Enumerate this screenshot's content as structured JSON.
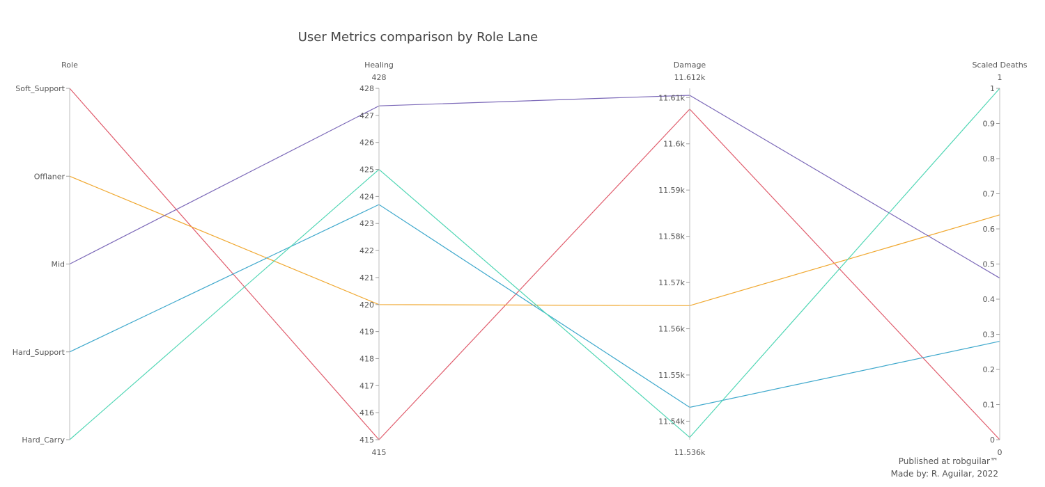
{
  "chart_data": {
    "type": "parallel_coordinates",
    "title": "User Metrics comparison by Role Lane",
    "dimensions": [
      {
        "key": "role",
        "label": "Role",
        "kind": "categorical",
        "categories": [
          "Soft_Support",
          "Offlaner",
          "Mid",
          "Hard_Support",
          "Hard_Carry"
        ]
      },
      {
        "key": "healing",
        "label": "Healing",
        "kind": "numeric",
        "range": [
          415,
          428
        ],
        "range_labels": [
          "415",
          "428"
        ],
        "ticks": [
          415,
          416,
          417,
          418,
          419,
          420,
          421,
          422,
          423,
          424,
          425,
          426,
          427,
          428
        ],
        "tick_labels": [
          "415",
          "416",
          "417",
          "418",
          "419",
          "420",
          "421",
          "422",
          "423",
          "424",
          "425",
          "426",
          "427",
          "428"
        ]
      },
      {
        "key": "damage",
        "label": "Damage",
        "kind": "numeric",
        "range": [
          11.536,
          11.612
        ],
        "range_labels": [
          "11.536k",
          "11.612k"
        ],
        "ticks": [
          11.54,
          11.55,
          11.56,
          11.57,
          11.58,
          11.59,
          11.6,
          11.61
        ],
        "tick_labels": [
          "11.54k",
          "11.55k",
          "11.56k",
          "11.57k",
          "11.58k",
          "11.59k",
          "11.6k",
          "11.61k"
        ]
      },
      {
        "key": "deaths",
        "label": "Scaled Deaths",
        "kind": "numeric",
        "range": [
          0,
          1
        ],
        "range_labels": [
          "0",
          "1"
        ],
        "ticks": [
          0,
          0.1,
          0.2,
          0.3,
          0.4,
          0.5,
          0.6,
          0.7,
          0.8,
          0.9,
          1
        ],
        "tick_labels": [
          "0",
          "0.1",
          "0.2",
          "0.3",
          "0.4",
          "0.5",
          "0.6",
          "0.7",
          "0.8",
          "0.9",
          "1"
        ]
      }
    ],
    "records": [
      {
        "role": "Soft_Support",
        "healing": 415.0,
        "damage": 11.6075,
        "deaths": 0.0,
        "color": "#e05c6c"
      },
      {
        "role": "Offlaner",
        "healing": 420.0,
        "damage": 11.565,
        "deaths": 0.64,
        "color": "#f0a830"
      },
      {
        "role": "Mid",
        "healing": 427.35,
        "damage": 11.6105,
        "deaths": 0.46,
        "color": "#7b68b8"
      },
      {
        "role": "Hard_Support",
        "healing": 423.7,
        "damage": 11.543,
        "deaths": 0.28,
        "color": "#3ea8cc"
      },
      {
        "role": "Hard_Carry",
        "healing": 425.0,
        "damage": 11.5365,
        "deaths": 1.0,
        "color": "#4fd6b4"
      }
    ]
  },
  "footer": {
    "published": "Published at robguilar™",
    "made_by": "Made by:  R. Aguilar, 2022"
  }
}
